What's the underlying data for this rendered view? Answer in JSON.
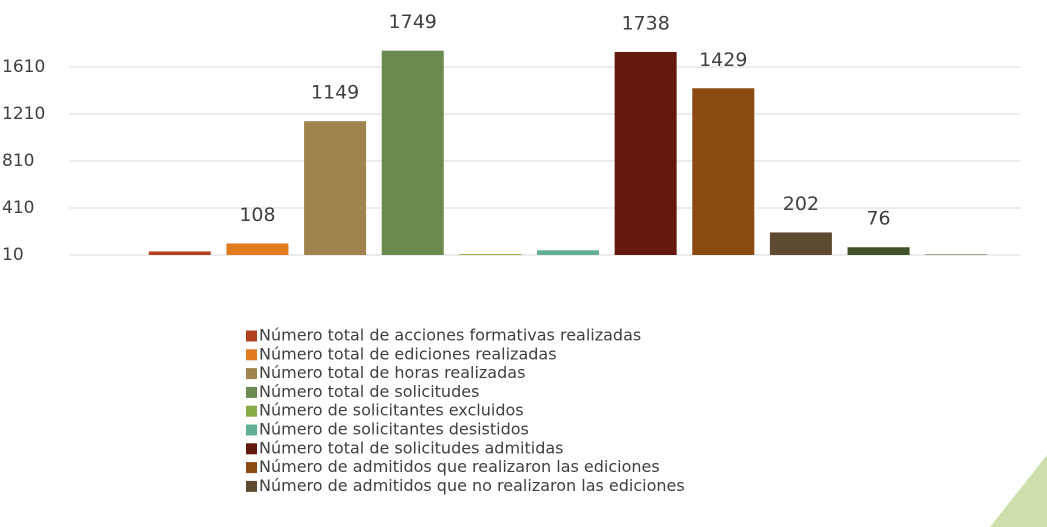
{
  "chart_data": {
    "type": "bar",
    "categories": [
      "Número total de acciones formativas realizadas",
      "Número total de ediciones realizadas",
      "Número total de horas realizadas",
      "Número total de solicitudes",
      "Número de solicitantes excluidos",
      "Número de solicitantes desistidos",
      "Número total de solicitudes admitidas",
      "Número de admitidos que realizaron las ediciones",
      "Número de admitidos que no realizaron las ediciones",
      null,
      null
    ],
    "values": [
      40,
      108,
      1149,
      1749,
      18,
      50,
      1738,
      1429,
      202,
      76,
      15
    ],
    "value_labels": [
      null,
      "108",
      "1149",
      "1749",
      null,
      null,
      "1738",
      "1429",
      "202",
      "76",
      null
    ],
    "colors": [
      "#b0401e",
      "#e07b20",
      "#a0834f",
      "#6b8a4e",
      "#8aac48",
      "#5fae95",
      "#631a0c",
      "#8a4a10",
      "#5e4a30",
      "#3f5228",
      "#526b3a"
    ],
    "ylim": [
      10,
      2010
    ],
    "yticks": [
      10,
      410,
      810,
      1210,
      1610
    ],
    "grid": true,
    "legend": "bottom"
  }
}
